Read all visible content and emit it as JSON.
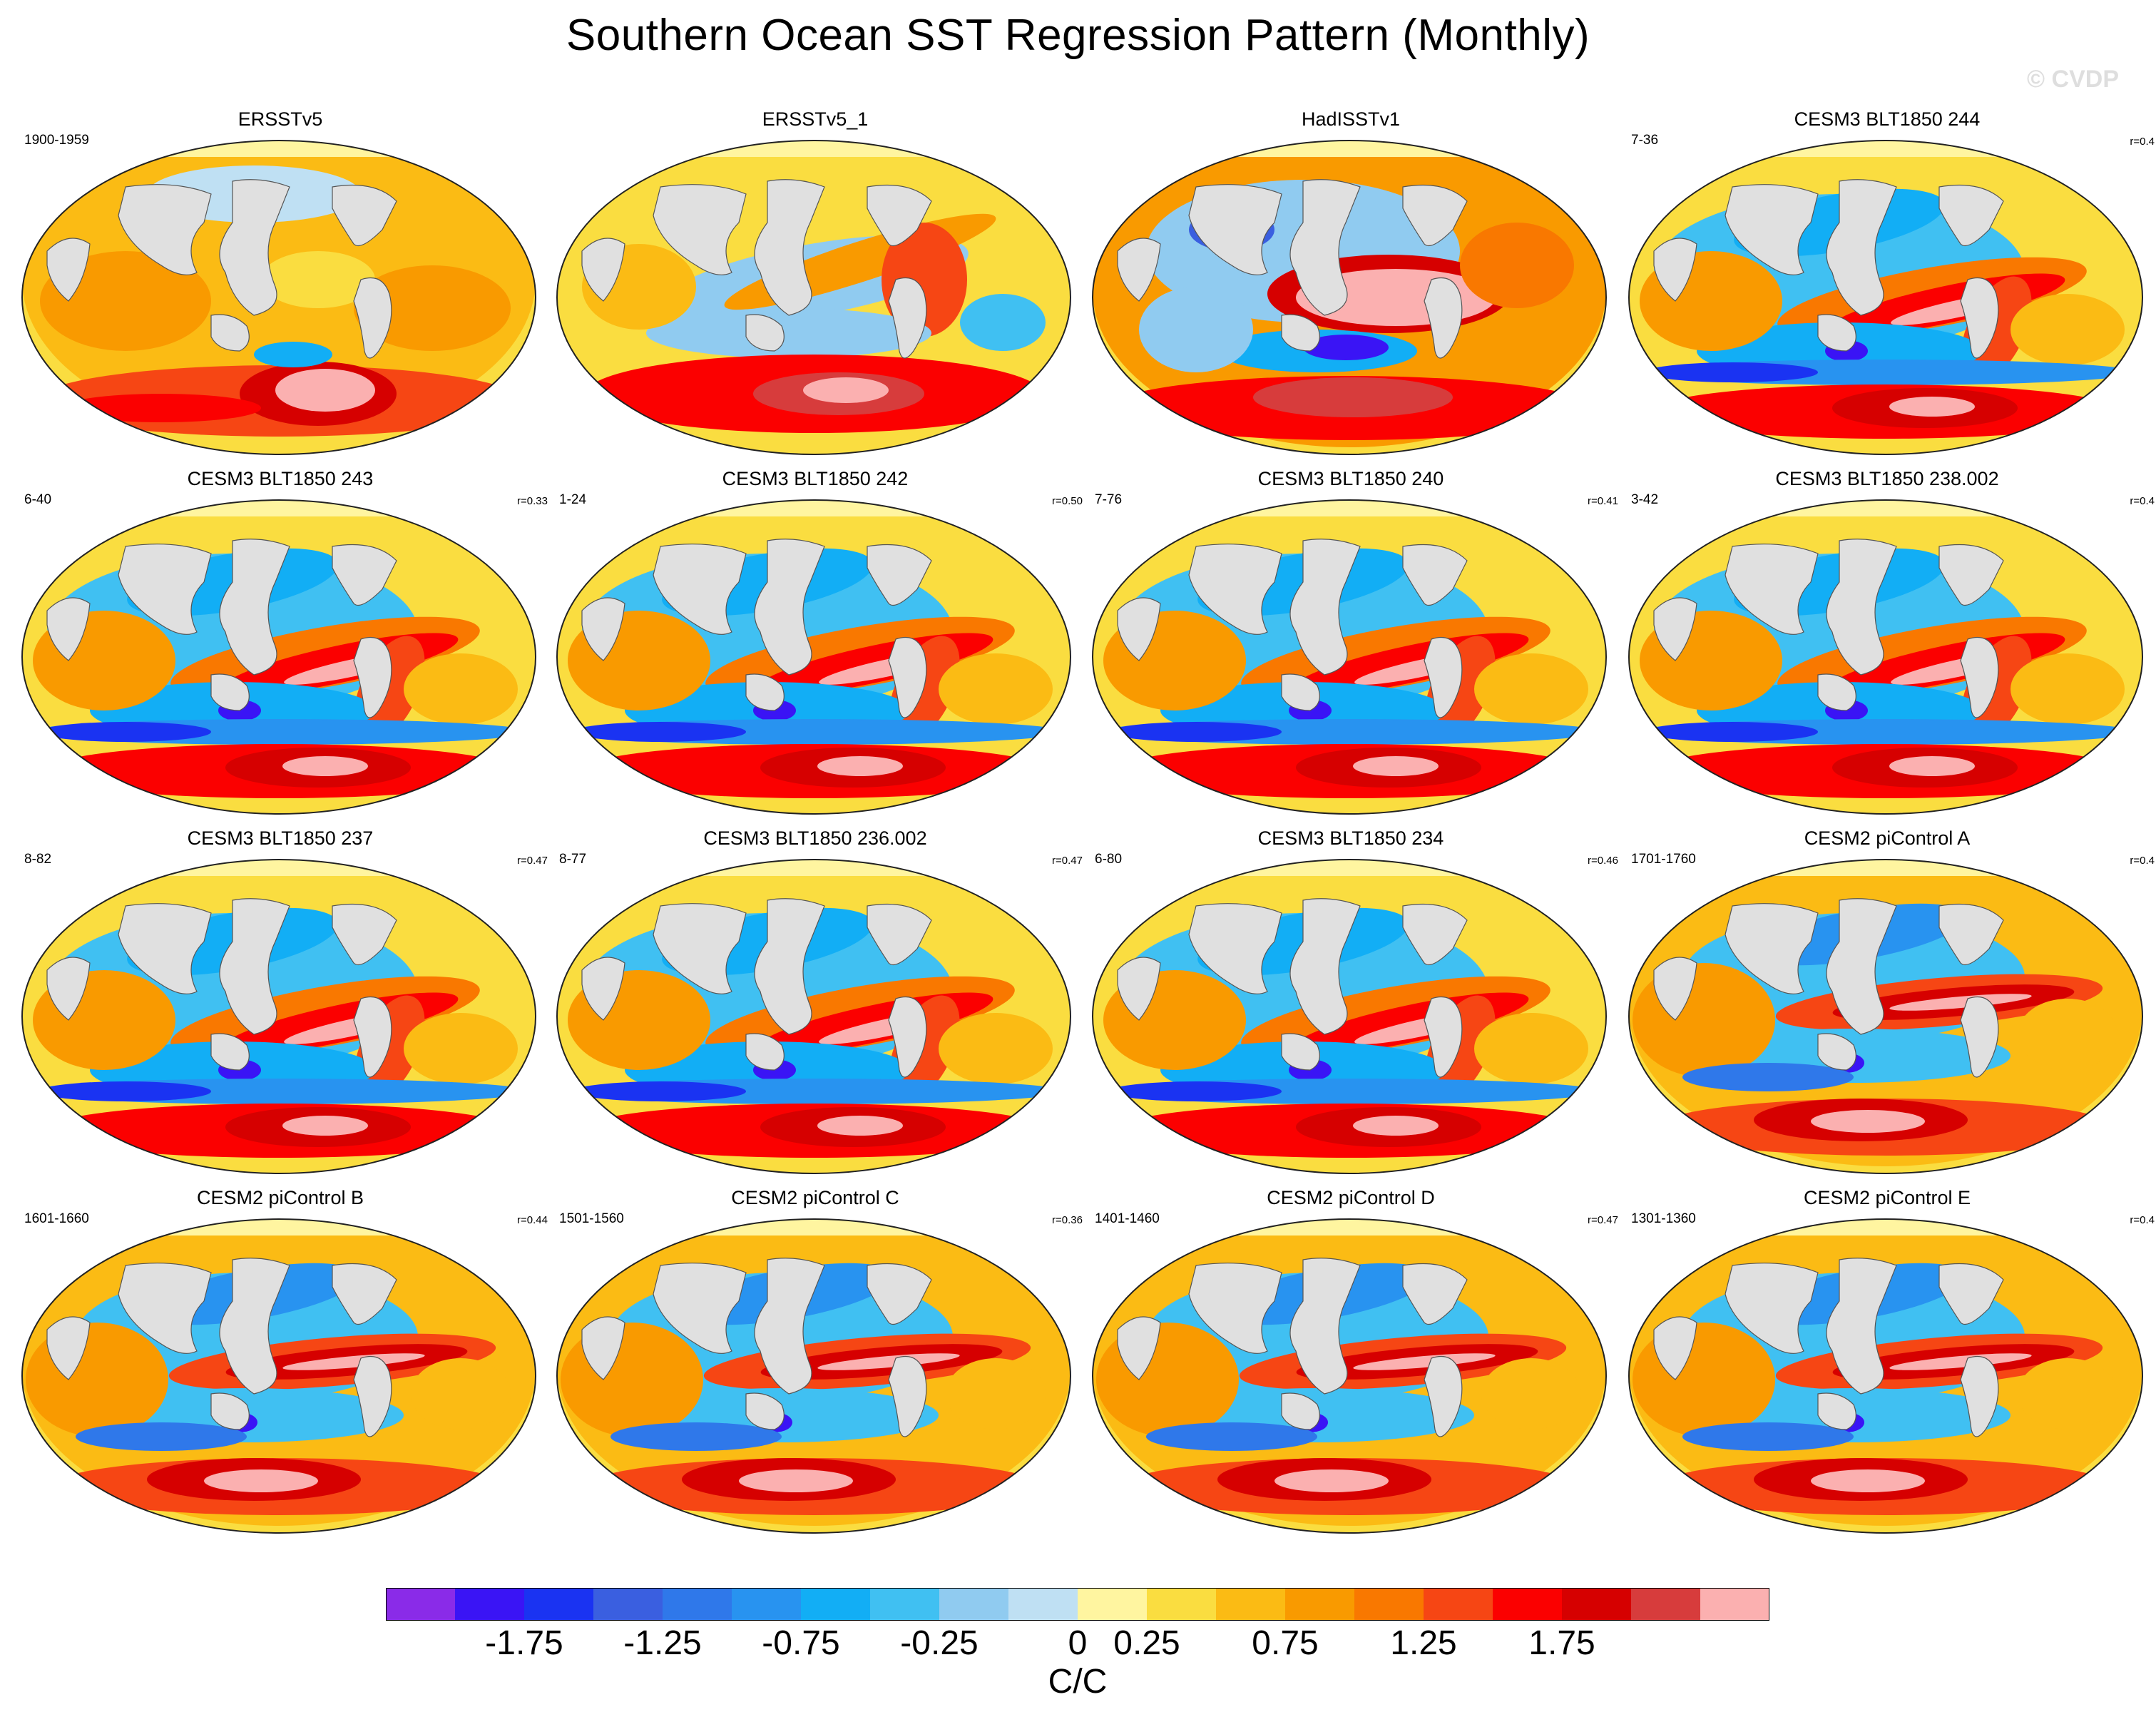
{
  "title": "Southern Ocean SST Regression Pattern (Monthly)",
  "watermark": "© CVDP",
  "colorbar": {
    "units": "C/C",
    "colors": [
      "#8a2be8",
      "#3a14f5",
      "#1a33f2",
      "#3a5fe0",
      "#2f78ea",
      "#2893f0",
      "#12aef5",
      "#40c0f2",
      "#90cbf0",
      "#bfe0f3",
      "#fff5a0",
      "#fadd40",
      "#fbbb14",
      "#f99a00",
      "#f97800",
      "#f64614",
      "#fb0000",
      "#d60000",
      "#d73c3c",
      "#fbb0b0"
    ],
    "tick_labels": [
      "-1.75",
      "-1.25",
      "-0.75",
      "-0.25",
      "0",
      "0.25",
      "0.75",
      "1.25",
      "1.75"
    ]
  },
  "panels": [
    {
      "title": "ERSSTv5",
      "left": "1900-1959",
      "right": "",
      "pattern": "obs1"
    },
    {
      "title": "ERSSTv5_1",
      "left": "",
      "right": "",
      "pattern": "obs2"
    },
    {
      "title": "HadISSTv1",
      "left": "",
      "right": "",
      "pattern": "obs3"
    },
    {
      "title": "CESM3 BLT1850 244",
      "left": "7-36",
      "right": "r=0.4",
      "pattern": "model"
    },
    {
      "title": "CESM3 BLT1850 243",
      "left": "6-40",
      "right": "r=0.33",
      "pattern": "model"
    },
    {
      "title": "CESM3 BLT1850 242",
      "left": "1-24",
      "right": "r=0.50",
      "pattern": "model"
    },
    {
      "title": "CESM3 BLT1850 240",
      "left": "7-76",
      "right": "r=0.41",
      "pattern": "model"
    },
    {
      "title": "CESM3 BLT1850 238.002",
      "left": "3-42",
      "right": "r=0.4",
      "pattern": "model"
    },
    {
      "title": "CESM3 BLT1850 237",
      "left": "8-82",
      "right": "r=0.47",
      "pattern": "model"
    },
    {
      "title": "CESM3 BLT1850 236.002",
      "left": "8-77",
      "right": "r=0.47",
      "pattern": "model"
    },
    {
      "title": "CESM3 BLT1850 234",
      "left": "6-80",
      "right": "r=0.46",
      "pattern": "model"
    },
    {
      "title": "CESM2 piControl A",
      "left": "1701-1760",
      "right": "r=0.4",
      "pattern": "cesm2"
    },
    {
      "title": "CESM2 piControl B",
      "left": "1601-1660",
      "right": "r=0.44",
      "pattern": "cesm2"
    },
    {
      "title": "CESM2 piControl C",
      "left": "1501-1560",
      "right": "r=0.36",
      "pattern": "cesm2"
    },
    {
      "title": "CESM2 piControl D",
      "left": "1401-1460",
      "right": "r=0.47",
      "pattern": "cesm2"
    },
    {
      "title": "CESM2 piControl E",
      "left": "1301-1360",
      "right": "r=0.4",
      "pattern": "cesm2"
    }
  ]
}
